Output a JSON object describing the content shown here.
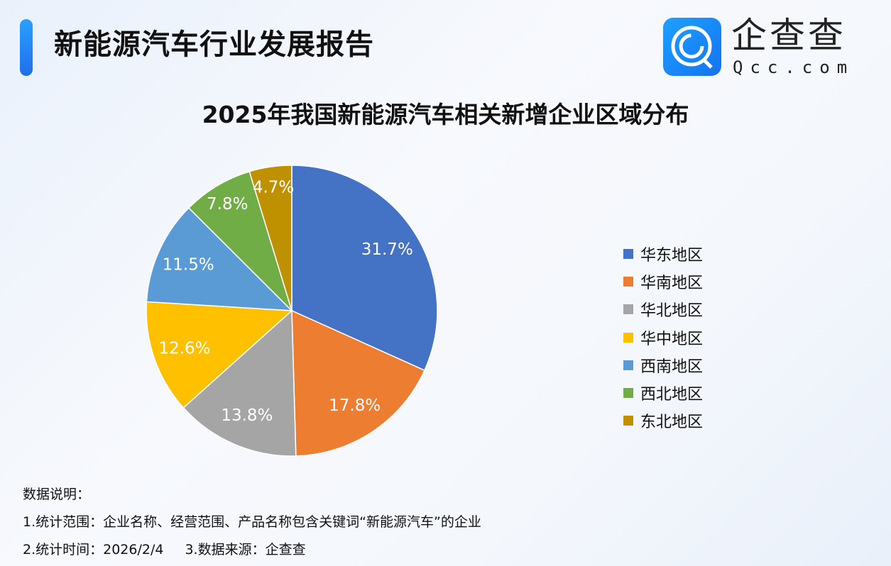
{
  "header": {
    "title": "新能源汽车行业发展报告"
  },
  "brand": {
    "name": "企查查",
    "domain": "Qcc.com"
  },
  "chart_data": {
    "type": "pie",
    "title": "2025年我国新能源汽车相关新增企业区域分布",
    "categories": [
      "华东地区",
      "华南地区",
      "华北地区",
      "华中地区",
      "西南地区",
      "西北地区",
      "东北地区"
    ],
    "values": [
      31.7,
      17.8,
      13.8,
      12.6,
      11.5,
      7.8,
      4.7
    ],
    "labels": [
      "31.7%",
      "17.8%",
      "13.8%",
      "12.6%",
      "11.5%",
      "7.8%",
      "4.7%"
    ],
    "colors": [
      "#4472C4",
      "#ED7D31",
      "#A5A5A5",
      "#FFC000",
      "#5B9BD5",
      "#70AD47",
      "#BF9000"
    ],
    "start": "12 o'clock, clockwise",
    "legend": "right"
  },
  "notes": {
    "heading": "数据说明：",
    "line1": "1.统计范围：企业名称、经营范围、产品名称包含关键词“新能源汽车”的企业",
    "line2a": "2.统计时间：2026/2/4",
    "line2b": "3.数据来源：企查查"
  }
}
